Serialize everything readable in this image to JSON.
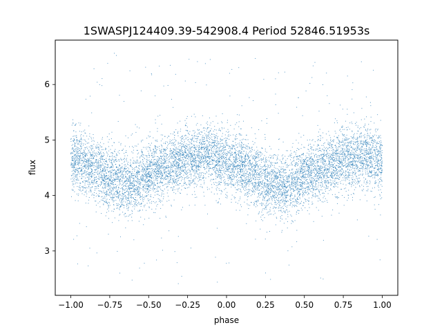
{
  "chart_data": {
    "type": "scatter",
    "title": "1SWASPJ124409.39-542908.4 Period 52846.51953s",
    "xlabel": "phase",
    "ylabel": "flux",
    "xlim": [
      -1.1,
      1.1
    ],
    "ylim": [
      2.2,
      6.8
    ],
    "x_ticks": [
      -1.0,
      -0.75,
      -0.5,
      -0.25,
      0.0,
      0.25,
      0.5,
      0.75,
      1.0
    ],
    "x_tick_labels": [
      "−1.00",
      "−0.75",
      "−0.50",
      "−0.25",
      "0.00",
      "0.25",
      "0.50",
      "0.75",
      "1.00"
    ],
    "y_ticks": [
      3,
      4,
      5,
      6
    ],
    "y_tick_labels": [
      "3",
      "4",
      "5",
      "6"
    ],
    "grid": false,
    "point_color": "#1f77b4",
    "series_shape": {
      "x_range": [
        -1.0,
        1.0
      ],
      "mean_flux": [
        {
          "x": -1.0,
          "y": 4.62
        },
        {
          "x": -0.875,
          "y": 4.55
        },
        {
          "x": -0.75,
          "y": 4.3
        },
        {
          "x": -0.625,
          "y": 4.2
        },
        {
          "x": -0.5,
          "y": 4.4
        },
        {
          "x": -0.375,
          "y": 4.55
        },
        {
          "x": -0.25,
          "y": 4.68
        },
        {
          "x": -0.125,
          "y": 4.75
        },
        {
          "x": 0.0,
          "y": 4.6
        },
        {
          "x": 0.125,
          "y": 4.48
        },
        {
          "x": 0.25,
          "y": 4.25
        },
        {
          "x": 0.375,
          "y": 4.15
        },
        {
          "x": 0.5,
          "y": 4.35
        },
        {
          "x": 0.625,
          "y": 4.5
        },
        {
          "x": 0.75,
          "y": 4.68
        },
        {
          "x": 0.875,
          "y": 4.75
        },
        {
          "x": 1.0,
          "y": 4.62
        }
      ],
      "core_scatter_sd": 0.28,
      "outlier_range": [
        2.4,
        6.6
      ]
    }
  }
}
